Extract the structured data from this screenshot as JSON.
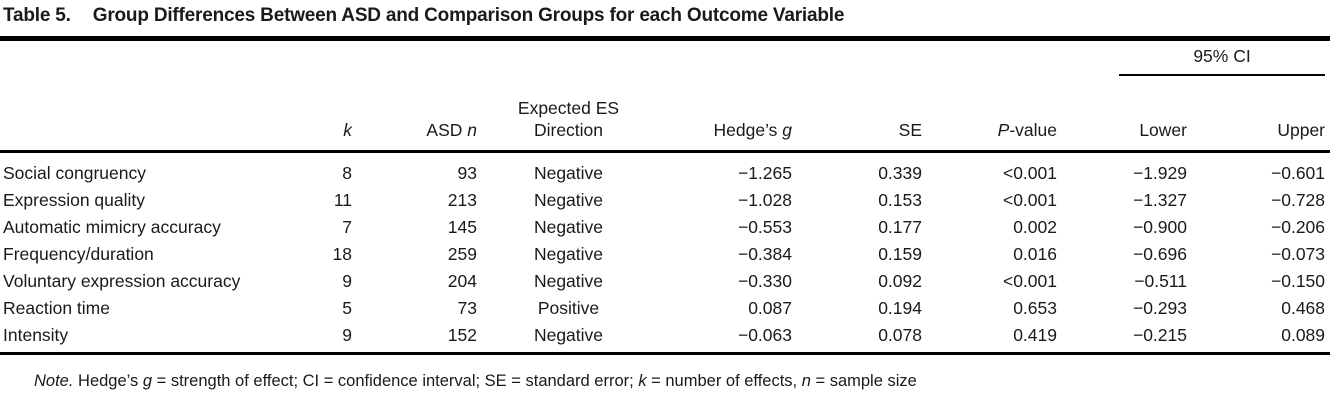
{
  "colors": {
    "text": "#1a1a1a",
    "rule": "#000000",
    "background": "#ffffff"
  },
  "title": {
    "table_label": "Table 5.",
    "text": "Group Differences Between ASD and Comparison Groups for each Outcome Variable"
  },
  "table": {
    "ci_spanner": "95% CI",
    "headers": {
      "k": "k",
      "asd_prefix": "ASD ",
      "asd_n": "n",
      "expected_line1": "Expected ES",
      "expected_line2": "Direction",
      "hedges_prefix": "Hedge’s ",
      "hedges_g": "g",
      "se": "SE",
      "p_italic": "P",
      "p_suffix": "-value",
      "lower": "Lower",
      "upper": "Upper"
    },
    "rows": [
      {
        "label": "Social congruency",
        "k": "8",
        "asd_n": "93",
        "direction": "Negative",
        "hedges_g": "−1.265",
        "se": "0.339",
        "p_value": "<0.001",
        "ci_lower": "−1.929",
        "ci_upper": "−0.601"
      },
      {
        "label": "Expression quality",
        "k": "11",
        "asd_n": "213",
        "direction": "Negative",
        "hedges_g": "−1.028",
        "se": "0.153",
        "p_value": "<0.001",
        "ci_lower": "−1.327",
        "ci_upper": "−0.728"
      },
      {
        "label": "Automatic mimicry accuracy",
        "k": "7",
        "asd_n": "145",
        "direction": "Negative",
        "hedges_g": "−0.553",
        "se": "0.177",
        "p_value": "0.002",
        "ci_lower": "−0.900",
        "ci_upper": "−0.206"
      },
      {
        "label": "Frequency/duration",
        "k": "18",
        "asd_n": "259",
        "direction": "Negative",
        "hedges_g": "−0.384",
        "se": "0.159",
        "p_value": "0.016",
        "ci_lower": "−0.696",
        "ci_upper": "−0.073"
      },
      {
        "label": "Voluntary expression accuracy",
        "k": "9",
        "asd_n": "204",
        "direction": "Negative",
        "hedges_g": "−0.330",
        "se": "0.092",
        "p_value": "<0.001",
        "ci_lower": "−0.511",
        "ci_upper": "−0.150"
      },
      {
        "label": "Reaction time",
        "k": "5",
        "asd_n": "73",
        "direction": "Positive",
        "hedges_g": "0.087",
        "se": "0.194",
        "p_value": "0.653",
        "ci_lower": "−0.293",
        "ci_upper": "0.468"
      },
      {
        "label": "Intensity",
        "k": "9",
        "asd_n": "152",
        "direction": "Negative",
        "hedges_g": "−0.063",
        "se": "0.078",
        "p_value": "0.419",
        "ci_lower": "−0.215",
        "ci_upper": "0.089"
      }
    ]
  },
  "note": {
    "label": "Note.",
    "part1": " Hedge’s ",
    "g": "g",
    "part2": " = strength of effect; CI = confidence interval; SE = standard error; ",
    "k": "k",
    "part3": " = number of effects, ",
    "n": "n",
    "part4": " = sample size"
  }
}
